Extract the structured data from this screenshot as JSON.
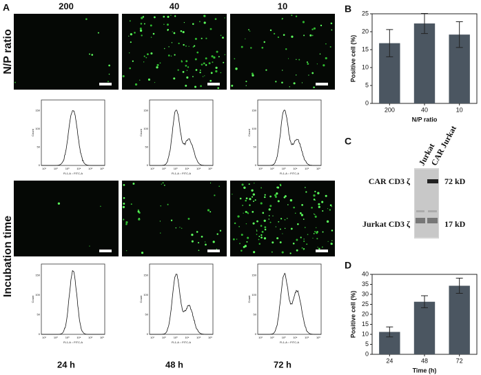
{
  "figure": {
    "panel_labels": [
      "A",
      "B",
      "C",
      "D"
    ],
    "panel_a": {
      "columns_top": [
        "200",
        "40",
        "10"
      ],
      "columns_bottom": [
        "24 h",
        "48 h",
        "72 h"
      ],
      "row_labels": [
        "N/P ratio",
        "Incubation time"
      ],
      "histogram": {
        "y_label": "Count",
        "x_label": "FL1-A :: FITC-A",
        "yticks": [
          "0",
          "50",
          "100",
          "150"
        ],
        "xticks": [
          "10¹",
          "10²",
          "10³",
          "10⁴",
          "10⁵",
          "10⁶"
        ]
      }
    },
    "panel_c": {
      "lanes": [
        "Jurkat",
        "CAR Jurkat"
      ],
      "bands": [
        {
          "name": "CAR CD3 ζ",
          "size": "72 kD"
        },
        {
          "name": "Jurkat CD3 ζ",
          "size": "17 kD"
        }
      ]
    }
  },
  "chart_data": [
    {
      "type": "bar",
      "categories": [
        "200",
        "40",
        "10"
      ],
      "values": [
        16.8,
        22.3,
        19.2
      ],
      "errors": [
        3.8,
        2.8,
        3.6
      ],
      "color": "#4b5661",
      "ylim": [
        0,
        25
      ],
      "yticks": [
        0,
        5,
        10,
        15,
        20,
        25
      ],
      "x_label": "N/P ratio",
      "y_label": "Positive cell (%)"
    },
    {
      "type": "bar",
      "categories": [
        "24",
        "48",
        "72"
      ],
      "values": [
        11.2,
        26.3,
        34.3
      ],
      "errors": [
        2.5,
        3.0,
        3.8
      ],
      "color": "#4b5661",
      "ylim": [
        0,
        40
      ],
      "yticks": [
        0,
        5,
        10,
        15,
        20,
        25,
        30,
        35,
        40
      ],
      "x_label": "Time (h)",
      "y_label": "Positive cell (%)"
    }
  ]
}
